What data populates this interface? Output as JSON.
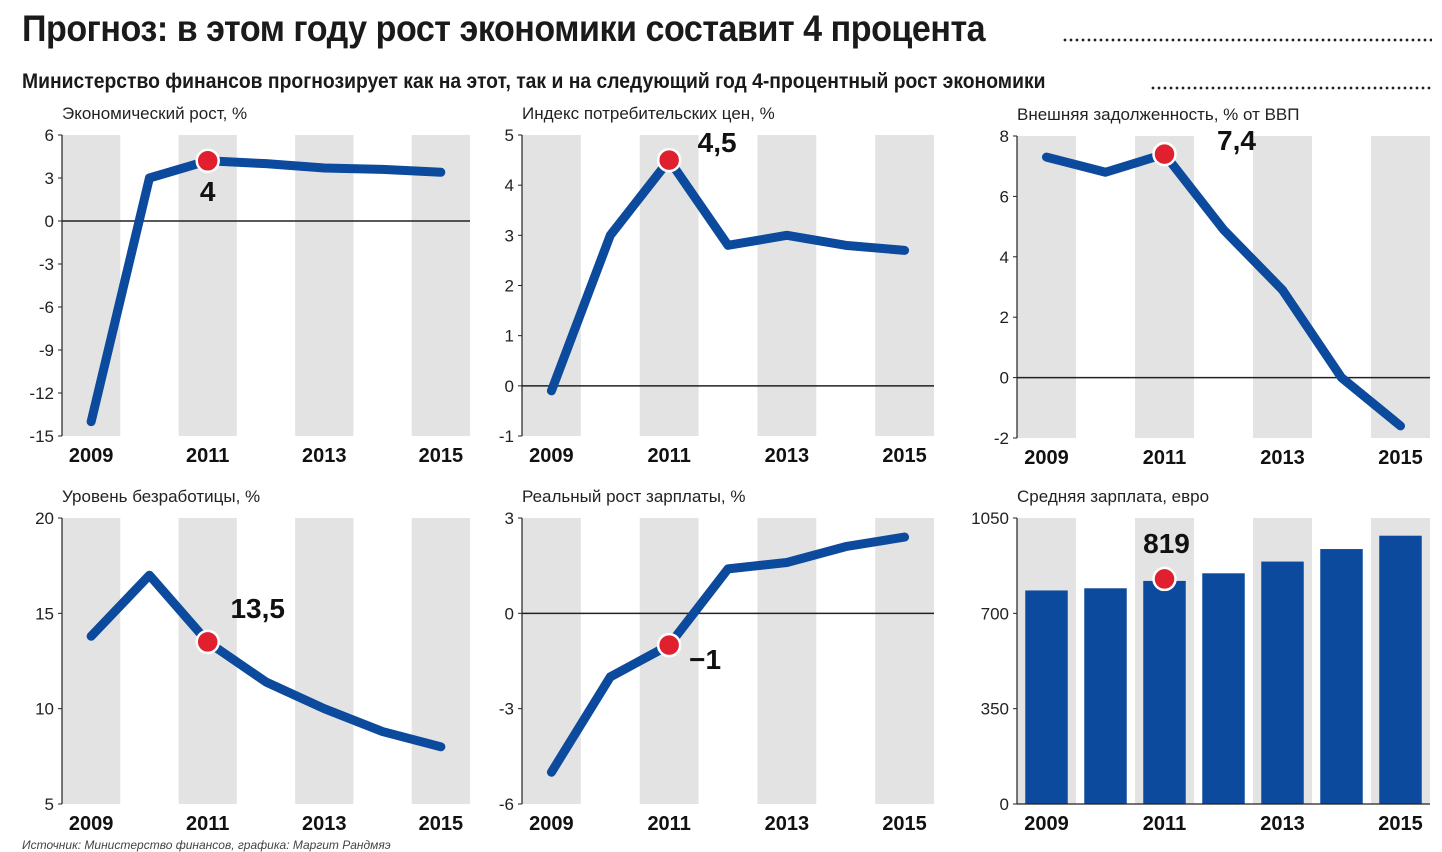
{
  "header": {
    "title": "Прогноз: в этом году рост экономики составит 4 процента",
    "subtitle": "Министерство финансов прогнозирует как на этот, так и на следующий год 4-процентный рост экономики"
  },
  "source": "Источник: Министерство финансов, графика: Маргит Рандмяэ",
  "colors": {
    "line": "#0b4a9c",
    "marker": "#e0202e",
    "band": "#e3e3e3",
    "bar": "#0b4a9c"
  },
  "chart_data": [
    {
      "type": "line",
      "title": "Экономический рост, %",
      "x": [
        2009,
        2010,
        2011,
        2012,
        2013,
        2014,
        2015
      ],
      "values": [
        -14,
        3,
        4.2,
        4,
        3.7,
        3.6,
        3.4
      ],
      "ylim": [
        -15,
        6
      ],
      "yticks": [
        6,
        3,
        0,
        -3,
        -6,
        -9,
        -12,
        -15
      ],
      "xticks": [
        2009,
        2011,
        2013,
        2015
      ],
      "highlight_index": 2,
      "highlight_label": "4"
    },
    {
      "type": "line",
      "title": "Индекс потребительских цен, %",
      "x": [
        2009,
        2010,
        2011,
        2012,
        2013,
        2014,
        2015
      ],
      "values": [
        -0.1,
        3,
        4.5,
        2.8,
        3,
        2.8,
        2.7
      ],
      "ylim": [
        -1,
        5
      ],
      "yticks": [
        5,
        4,
        3,
        2,
        1,
        0,
        -1
      ],
      "xticks": [
        2009,
        2011,
        2013,
        2015
      ],
      "highlight_index": 2,
      "highlight_label": "4,5"
    },
    {
      "type": "line",
      "title": "Внешняя задолженность, % от ВВП",
      "x": [
        2009,
        2010,
        2011,
        2012,
        2013,
        2014,
        2015
      ],
      "values": [
        7.3,
        6.8,
        7.4,
        4.9,
        2.9,
        0,
        -1.6
      ],
      "ylim": [
        -2,
        8
      ],
      "yticks": [
        8,
        6,
        4,
        2,
        0,
        -2
      ],
      "xticks": [
        2009,
        2011,
        2013,
        2015
      ],
      "highlight_index": 2,
      "highlight_label": "7,4"
    },
    {
      "type": "line",
      "title": "Уровень безработицы, %",
      "x": [
        2009,
        2010,
        2011,
        2012,
        2013,
        2014,
        2015
      ],
      "values": [
        13.8,
        17,
        13.5,
        11.4,
        10,
        8.8,
        8
      ],
      "ylim": [
        5,
        20
      ],
      "yticks": [
        20,
        15,
        10,
        5
      ],
      "xticks": [
        2009,
        2011,
        2013,
        2015
      ],
      "highlight_index": 2,
      "highlight_label": "13,5"
    },
    {
      "type": "line",
      "title": "Реальный рост зарплаты, %",
      "x": [
        2009,
        2010,
        2011,
        2012,
        2013,
        2014,
        2015
      ],
      "values": [
        -5,
        -2,
        -1,
        1.4,
        1.6,
        2.1,
        2.4
      ],
      "ylim": [
        -6,
        3
      ],
      "yticks": [
        3,
        0,
        -3,
        -6
      ],
      "xticks": [
        2009,
        2011,
        2013,
        2015
      ],
      "highlight_index": 2,
      "highlight_label": "−1"
    },
    {
      "type": "bar",
      "title": "Средняя зарплата, евро",
      "x": [
        2009,
        2010,
        2011,
        2012,
        2013,
        2014,
        2015
      ],
      "values": [
        784,
        792,
        819,
        847,
        890,
        936,
        985
      ],
      "ylim": [
        0,
        1050
      ],
      "yticks": [
        1050,
        700,
        350,
        0
      ],
      "xticks": [
        2009,
        2011,
        2013,
        2015
      ],
      "highlight_index": 2,
      "highlight_label": "819"
    }
  ]
}
